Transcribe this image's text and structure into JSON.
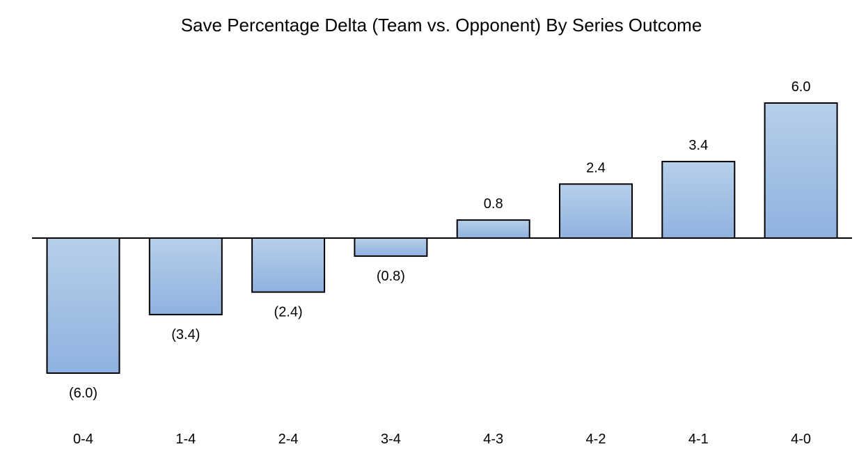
{
  "chart_data": {
    "type": "bar",
    "title": "Save Percentage Delta (Team vs. Opponent) By Series Outcome",
    "categories": [
      "0-4",
      "1-4",
      "2-4",
      "3-4",
      "4-3",
      "4-2",
      "4-1",
      "4-0"
    ],
    "values": [
      -6.0,
      -3.4,
      -2.4,
      -0.8,
      0.8,
      2.4,
      3.4,
      6.0
    ],
    "data_labels": [
      "(6.0)",
      "(3.4)",
      "(2.4)",
      "(0.8)",
      "0.8",
      "2.4",
      "3.4",
      "6.0"
    ],
    "xlabel": "",
    "ylabel": "",
    "ylim": [
      -6.0,
      6.0
    ],
    "grid": false,
    "legend": "none",
    "colors": {
      "bar_fill_top": "#b7cfea",
      "bar_fill_bottom": "#8fb2df",
      "bar_stroke": "#000000",
      "axis": "#000000"
    }
  }
}
